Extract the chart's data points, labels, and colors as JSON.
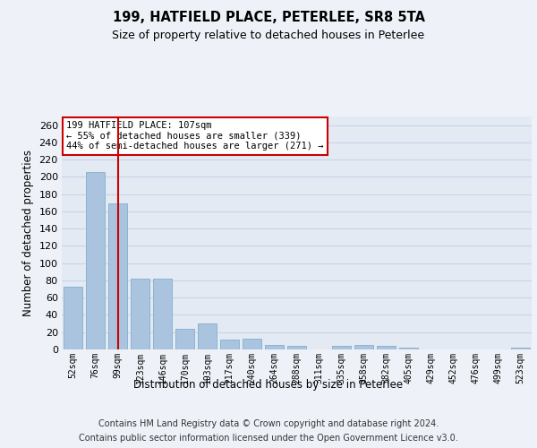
{
  "title1": "199, HATFIELD PLACE, PETERLEE, SR8 5TA",
  "title2": "Size of property relative to detached houses in Peterlee",
  "xlabel": "Distribution of detached houses by size in Peterlee",
  "ylabel": "Number of detached properties",
  "categories": [
    "52sqm",
    "76sqm",
    "99sqm",
    "123sqm",
    "146sqm",
    "170sqm",
    "193sqm",
    "217sqm",
    "240sqm",
    "264sqm",
    "288sqm",
    "311sqm",
    "335sqm",
    "358sqm",
    "382sqm",
    "405sqm",
    "429sqm",
    "452sqm",
    "476sqm",
    "499sqm",
    "523sqm"
  ],
  "values": [
    73,
    206,
    169,
    82,
    82,
    24,
    30,
    11,
    12,
    5,
    4,
    0,
    4,
    5,
    4,
    2,
    0,
    0,
    0,
    0,
    2
  ],
  "bar_color": "#aac4e0",
  "bar_edge_color": "#8ab4d0",
  "grid_color": "#c8d4e4",
  "vline_x": 2,
  "vline_color": "#cc0000",
  "annotation_text": "199 HATFIELD PLACE: 107sqm\n← 55% of detached houses are smaller (339)\n44% of semi-detached houses are larger (271) →",
  "annotation_box_color": "#ffffff",
  "annotation_box_edge": "#cc0000",
  "ylim": [
    0,
    270
  ],
  "yticks": [
    0,
    20,
    40,
    60,
    80,
    100,
    120,
    140,
    160,
    180,
    200,
    220,
    240,
    260
  ],
  "footer_line1": "Contains HM Land Registry data © Crown copyright and database right 2024.",
  "footer_line2": "Contains public sector information licensed under the Open Government Licence v3.0.",
  "bg_color": "#eef2f8",
  "plot_bg_color": "#e4eaf4"
}
